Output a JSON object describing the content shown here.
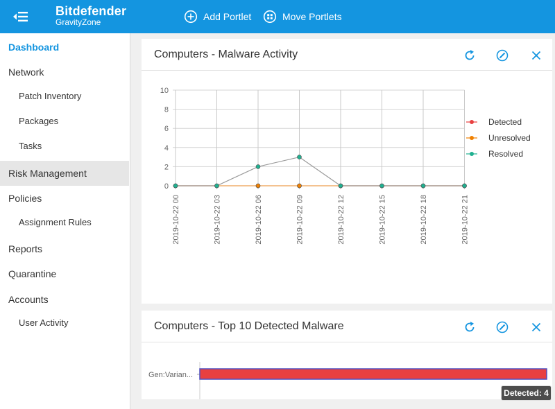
{
  "brand": {
    "name": "Bitdefender",
    "sub": "GravityZone"
  },
  "topbar": {
    "menu_icon": "menu-collapse-icon",
    "actions": [
      {
        "label": "Add Portlet",
        "icon": "add-circle-icon"
      },
      {
        "label": "Move Portlets",
        "icon": "grid-icon"
      }
    ]
  },
  "sidebar": {
    "items": [
      {
        "label": "Dashboard",
        "level": "top",
        "state": "active"
      },
      {
        "label": "Network",
        "level": "top"
      },
      {
        "label": "Patch Inventory",
        "level": "sub"
      },
      {
        "label": "Packages",
        "level": "sub"
      },
      {
        "label": "Tasks",
        "level": "sub"
      },
      {
        "label": "Risk Management",
        "level": "top",
        "state": "hover"
      },
      {
        "label": "Policies",
        "level": "top"
      },
      {
        "label": "Assignment Rules",
        "level": "sub"
      },
      {
        "label": "Reports",
        "level": "top"
      },
      {
        "label": "Quarantine",
        "level": "top"
      },
      {
        "label": "Accounts",
        "level": "top"
      },
      {
        "label": "User Activity",
        "level": "sub"
      }
    ]
  },
  "portlets": [
    {
      "title": "Computers - Malware Activity",
      "icons": [
        "refresh-icon",
        "edit-icon",
        "close-icon"
      ]
    },
    {
      "title": "Computers - Top 10 Detected Malware",
      "icons": [
        "refresh-icon",
        "edit-icon",
        "close-icon"
      ]
    }
  ],
  "colors": {
    "accent": "#1495e0",
    "detected": "#e84040",
    "unresolved": "#f08000",
    "resolved": "#20b090",
    "bar_border": "#5050c0"
  },
  "chart_data": [
    {
      "type": "line",
      "categories": [
        "2019-10-22 00",
        "2019-10-22 03",
        "2019-10-22 06",
        "2019-10-22 09",
        "2019-10-22 12",
        "2019-10-22 15",
        "2019-10-22 18",
        "2019-10-22 21"
      ],
      "series": [
        {
          "name": "Detected",
          "values": [
            0,
            0,
            0,
            0,
            0,
            0,
            0,
            0
          ],
          "color": "#e84040"
        },
        {
          "name": "Unresolved",
          "values": [
            0,
            0,
            0,
            0,
            0,
            0,
            0,
            0
          ],
          "color": "#f08000"
        },
        {
          "name": "Resolved",
          "values": [
            0,
            0,
            2,
            3,
            0,
            0,
            0,
            0
          ],
          "color": "#20b090"
        }
      ],
      "yticks": [
        "0",
        "2",
        "4",
        "6",
        "8",
        "10"
      ],
      "ylim": [
        0,
        10
      ],
      "grid": true,
      "legend": "right"
    },
    {
      "type": "bar",
      "orientation": "horizontal",
      "categories": [
        "Gen:Varian..."
      ],
      "values": [
        4
      ],
      "tooltip": "Detected: 4"
    }
  ]
}
